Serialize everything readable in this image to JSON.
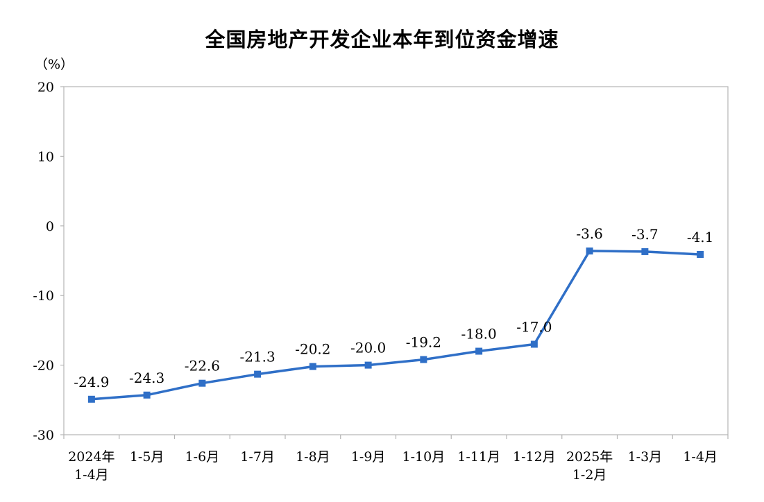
{
  "chart_data": {
    "type": "line",
    "title": "全国房地产开发企业本年到位资金增速",
    "ylabel": "（%）",
    "xlabel": "",
    "ylim": [
      -30,
      20
    ],
    "yticks": [
      "20",
      "10",
      "0",
      "-10",
      "-20",
      "-30"
    ],
    "categories": [
      [
        "2024年",
        "1-4月"
      ],
      [
        "1-5月"
      ],
      [
        "1-6月"
      ],
      [
        "1-7月"
      ],
      [
        "1-8月"
      ],
      [
        "1-9月"
      ],
      [
        "1-10月"
      ],
      [
        "1-11月"
      ],
      [
        "1-12月"
      ],
      [
        "2025年",
        "1-2月"
      ],
      [
        "1-3月"
      ],
      [
        "1-4月"
      ]
    ],
    "values": [
      -24.9,
      -24.3,
      -22.6,
      -21.3,
      -20.2,
      -20.0,
      -19.2,
      -18.0,
      -17.0,
      -3.6,
      -3.7,
      -4.1
    ],
    "value_labels": [
      "-24.9",
      "-24.3",
      "-22.6",
      "-21.3",
      "-20.2",
      "-20.0",
      "-19.2",
      "-18.0",
      "-17.0",
      "-3.6",
      "-3.7",
      "-4.1"
    ],
    "grid": false,
    "line_color": "#2f6fc7",
    "marker": "square"
  }
}
